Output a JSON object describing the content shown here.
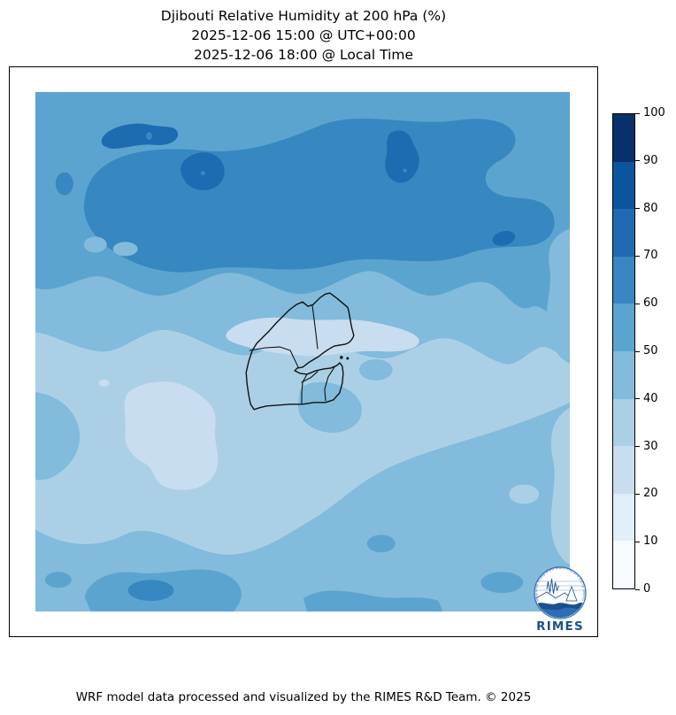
{
  "title": {
    "line1": "Djibouti Relative Humidity at 200 hPa (%)",
    "line2": "2025-12-06 15:00 @ UTC+00:00",
    "line3": "2025-12-06 18:00 @ Local Time"
  },
  "footer": {
    "text": "WRF model data processed and visualized by the RIMES R&D Team. © 2025"
  },
  "colorbar": {
    "min": 0,
    "max": 100,
    "step": 10,
    "ticks": [
      0,
      10,
      20,
      30,
      40,
      50,
      60,
      70,
      80,
      90,
      100
    ],
    "colors": [
      "#f7fbff",
      "#e1edf8",
      "#c9ddf0",
      "#abd0e6",
      "#82bbdb",
      "#5ca4d0",
      "#3787c0",
      "#1d6cb1",
      "#0b559f",
      "#08306b"
    ]
  },
  "logo": {
    "name": "RIMES",
    "ring_text": "Regional Integrated Multi-Hazard Early Warning System",
    "navy": "#1b4f8f",
    "blue": "#2f6db3"
  },
  "map": {
    "country": "Djibouti",
    "outline_color": "#111111"
  },
  "chart_data": {
    "type": "heatmap",
    "subtype": "filled-contour-map",
    "title": "Djibouti Relative Humidity at 200 hPa (%)",
    "variable": "Relative Humidity",
    "pressure_level": "200 hPa",
    "units": "%",
    "time_utc": "2025-12-06 15:00 @ UTC+00:00",
    "time_local": "2025-12-06 18:00 @ Local Time",
    "colormap": "Blues",
    "legend_position": "right-vertical-colorbar",
    "levels": [
      0,
      10,
      20,
      30,
      40,
      50,
      60,
      70,
      80,
      90,
      100
    ],
    "level_colors": [
      "#f7fbff",
      "#e1edf8",
      "#c9ddf0",
      "#abd0e6",
      "#82bbdb",
      "#5ca4d0",
      "#3787c0",
      "#1d6cb1",
      "#0b559f",
      "#08306b"
    ],
    "value_range_on_map": [
      20,
      80
    ],
    "features": [
      {
        "band": "50-60",
        "where": "background across the whole northern third and thin strip along the top edge"
      },
      {
        "band": "60-70",
        "where": "broad east-west band across the north with a lighter wedge intruding from the top-right"
      },
      {
        "band": "70-80",
        "where": "cores inside the northern band: elongated NW blob, round centre-left blob, kidney-shaped centre blob, small eastern blob"
      },
      {
        "band": "40-50",
        "where": "transitional belt mid-map, right-edge strip, south-eastern mass, bottom band, small blobs south/south-east of Djibouti"
      },
      {
        "band": "30-40",
        "where": "light belt across the middle around Djibouti, lower-left bulk and narrow right-edge strip"
      },
      {
        "band": "20-30",
        "where": "palest patches: band across northern Djibouti and an irregular blob in the south-west"
      },
      {
        "band": "50-60/60-70",
        "where": "local maxima along the bottom edge, strongest core at bottom centre-left"
      }
    ],
    "overlay": "Djibouti national outline with internal regional boundaries and small islands at the Gulf of Tadjoura mouth"
  }
}
